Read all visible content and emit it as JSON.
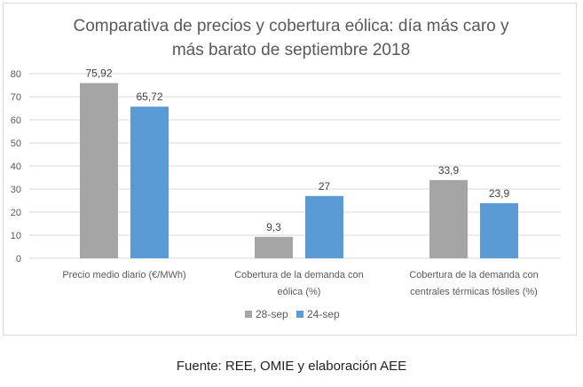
{
  "chart_data": {
    "type": "bar",
    "title": [
      "Comparativa de precios y cobertura eólica: día más caro y",
      "más barato de septiembre 2018"
    ],
    "categories": [
      [
        "Precio medio diario (€/MWh)"
      ],
      [
        "Cobertura de la demanda con",
        "eólica (%)"
      ],
      [
        "Cobertura de la demanda con",
        "centrales térmicas fósiles (%)"
      ]
    ],
    "series": [
      {
        "name": "28-sep",
        "color": "#a5a5a5",
        "values": [
          75.92,
          9.3,
          33.9
        ],
        "labels": [
          "75,92",
          "9,3",
          "33,9"
        ]
      },
      {
        "name": "24-sep",
        "color": "#5b9bd5",
        "values": [
          65.72,
          27,
          23.9
        ],
        "labels": [
          "65,72",
          "27",
          "23,9"
        ]
      }
    ],
    "yticks": [
      0,
      10,
      20,
      30,
      40,
      50,
      60,
      70,
      80
    ],
    "ylim": [
      0,
      80
    ],
    "xlabel": "",
    "ylabel": "",
    "grid": true,
    "legend": "bottom-center"
  },
  "caption": "Fuente: REE, OMIE y elaboración AEE"
}
